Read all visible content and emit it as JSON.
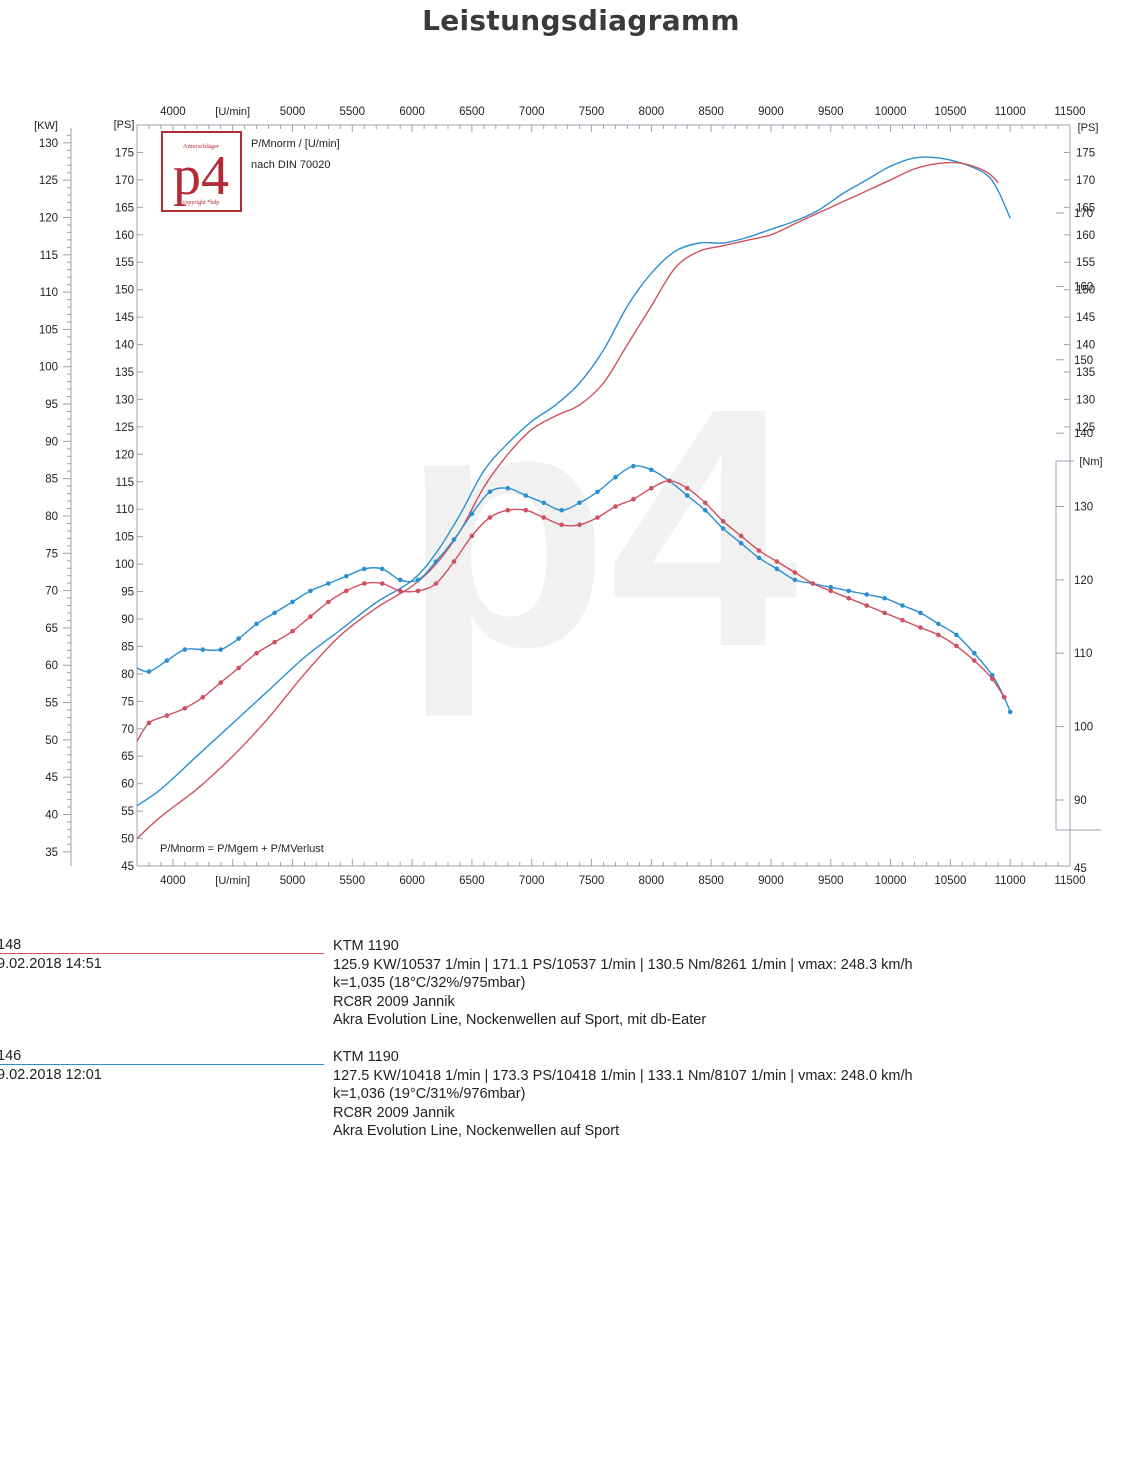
{
  "title": "Leistungsdiagramm",
  "logo": {
    "text": "p4",
    "small_top": "Amerschläger",
    "small_bottom": "copyright *hdp"
  },
  "legend_notes": {
    "line1": "P/Mnorm / [U/min]",
    "line2": "nach DIN 70020",
    "formula": "P/Mnorm = P/Mgem + P/MVerlust"
  },
  "axis_units": {
    "rpm": "[U/min]",
    "kw": "[KW]",
    "ps_left": "[PS]",
    "ps_right": "[PS]",
    "nm": "[Nm]"
  },
  "colors": {
    "red": "#d0505e",
    "blue": "#2a8fd0",
    "grid_text": "#222222",
    "axis": "#9aa4b0",
    "logo": "#b42a35"
  },
  "runs": [
    {
      "id": "148",
      "date": "9.02.2018  14:51",
      "color": "#d0505e",
      "vehicle": "KTM 1190",
      "summary": "125.9 KW/10537 1/min  |  171.1 PS/10537 1/min  |  130.5 Nm/8261 1/min | vmax: 248.3 km/h",
      "conditions": "k=1,035 (18°C/32%/975mbar)",
      "bike": "RC8R 2009 Jannik",
      "setup": "Akra Evolution Line, Nockenwellen auf Sport, mit db-Eater"
    },
    {
      "id": "146",
      "date": "9.02.2018  12:01",
      "color": "#2a8fd0",
      "vehicle": "KTM 1190",
      "summary": "127.5 KW/10418 1/min  |  173.3 PS/10418 1/min  |  133.1 Nm/8107 1/min | vmax: 248.0 km/h",
      "conditions": "k=1,036 (19°C/31%/976mbar)",
      "bike": "RC8R 2009 Jannik",
      "setup": "Akra Evolution Line, Nockenwellen auf Sport"
    }
  ],
  "chart_data": {
    "type": "line",
    "title": "Leistungsdiagramm",
    "x_unit": "[U/min]",
    "xlim": [
      3700,
      11500
    ],
    "x_ticks": [
      4000,
      5000,
      5500,
      6000,
      6500,
      7000,
      7500,
      8000,
      8500,
      9000,
      9500,
      10000,
      10500,
      11000,
      11500
    ],
    "kw_axis": {
      "label": "[KW]",
      "ticks": [
        35,
        40,
        45,
        50,
        55,
        60,
        65,
        70,
        75,
        80,
        85,
        90,
        95,
        100,
        105,
        110,
        115,
        120,
        125,
        130
      ]
    },
    "ps_left_axis": {
      "label": "[PS]",
      "ylim": [
        45,
        180
      ],
      "ticks": [
        45,
        50,
        55,
        60,
        65,
        70,
        75,
        80,
        85,
        90,
        95,
        100,
        105,
        110,
        115,
        120,
        125,
        130,
        135,
        140,
        145,
        150,
        155,
        160,
        165,
        170,
        175
      ]
    },
    "ps_right_axis": {
      "label": "[PS]",
      "ticks": [
        125,
        130,
        135,
        140,
        145,
        150,
        155,
        160,
        165,
        170,
        175
      ]
    },
    "nm_axis": {
      "label": "[Nm]",
      "ylim": [
        81,
        182
      ],
      "ticks": [
        90,
        100,
        110,
        120,
        130,
        140,
        150,
        160,
        170
      ]
    },
    "power_series": [
      {
        "name": "146",
        "color": "#2a8fd0",
        "x": [
          3700,
          3900,
          4200,
          4500,
          4800,
          5100,
          5400,
          5700,
          6000,
          6200,
          6400,
          6600,
          6800,
          7000,
          7200,
          7400,
          7600,
          7800,
          8000,
          8200,
          8400,
          8600,
          8800,
          9000,
          9200,
          9400,
          9600,
          9800,
          10000,
          10200,
          10400,
          10600,
          10800,
          10900,
          11000
        ],
        "y": [
          56,
          59,
          65,
          71,
          77,
          83,
          88,
          93,
          97,
          102,
          109,
          117,
          122,
          126,
          129,
          133,
          139,
          147,
          153,
          157,
          158.5,
          158.5,
          159.5,
          161,
          162.5,
          164.5,
          167.5,
          170,
          172.5,
          174,
          174,
          173,
          171,
          168,
          163
        ]
      },
      {
        "name": "148",
        "color": "#d0505e",
        "x": [
          3700,
          3900,
          4200,
          4500,
          4800,
          5100,
          5400,
          5700,
          6000,
          6200,
          6400,
          6600,
          6800,
          7000,
          7200,
          7400,
          7600,
          7800,
          8000,
          8200,
          8400,
          8600,
          8800,
          9000,
          9200,
          9400,
          9600,
          9800,
          10000,
          10200,
          10400,
          10600,
          10800,
          10900
        ],
        "y": [
          50,
          54,
          59,
          65,
          72,
          80,
          87,
          92,
          96,
          100,
          106,
          114,
          120,
          124.5,
          127,
          129,
          133,
          140,
          147,
          154,
          157,
          158,
          159,
          160,
          162,
          164,
          166,
          168,
          170,
          172,
          173,
          173,
          171.5,
          169.5
        ]
      }
    ],
    "torque_series": [
      {
        "name": "146",
        "color": "#2a8fd0",
        "x": [
          3700,
          3800,
          3950,
          4100,
          4250,
          4400,
          4550,
          4700,
          4850,
          5000,
          5150,
          5300,
          5450,
          5600,
          5750,
          5900,
          6050,
          6200,
          6350,
          6500,
          6650,
          6800,
          6950,
          7100,
          7250,
          7400,
          7550,
          7700,
          7850,
          8000,
          8150,
          8300,
          8450,
          8600,
          8750,
          8900,
          9050,
          9200,
          9350,
          9500,
          9650,
          9800,
          9950,
          10100,
          10250,
          10400,
          10550,
          10700,
          10850,
          10950,
          11000
        ],
        "y": [
          108,
          107.5,
          109,
          110.5,
          110.5,
          110.5,
          112,
          114,
          115.5,
          117,
          118.5,
          119.5,
          120.5,
          121.5,
          121.5,
          120,
          120,
          122.5,
          125.5,
          129,
          132,
          132.5,
          131.5,
          130.5,
          129.5,
          130.5,
          132,
          134,
          135.5,
          135,
          133.5,
          131.5,
          129.5,
          127,
          125,
          123,
          121.5,
          120,
          119.5,
          119,
          118.5,
          118,
          117.5,
          116.5,
          115.5,
          114,
          112.5,
          110,
          107,
          104,
          102
        ]
      },
      {
        "name": "148",
        "color": "#d0505e",
        "x": [
          3700,
          3800,
          3950,
          4100,
          4250,
          4400,
          4550,
          4700,
          4850,
          5000,
          5150,
          5300,
          5450,
          5600,
          5750,
          5900,
          6050,
          6200,
          6350,
          6500,
          6650,
          6800,
          6950,
          7100,
          7250,
          7400,
          7550,
          7700,
          7850,
          8000,
          8150,
          8300,
          8450,
          8600,
          8750,
          8900,
          9050,
          9200,
          9350,
          9500,
          9650,
          9800,
          9950,
          10100,
          10250,
          10400,
          10550,
          10700,
          10850,
          10950
        ],
        "y": [
          98,
          100.5,
          101.5,
          102.5,
          104,
          106,
          108,
          110,
          111.5,
          113,
          115,
          117,
          118.5,
          119.5,
          119.5,
          118.5,
          118.5,
          119.5,
          122.5,
          126,
          128.5,
          129.5,
          129.5,
          128.5,
          127.5,
          127.5,
          128.5,
          130,
          131,
          132.5,
          133.5,
          132.5,
          130.5,
          128,
          126,
          124,
          122.5,
          121,
          119.5,
          118.5,
          117.5,
          116.5,
          115.5,
          114.5,
          113.5,
          112.5,
          111,
          109,
          106.5,
          104
        ]
      }
    ]
  }
}
